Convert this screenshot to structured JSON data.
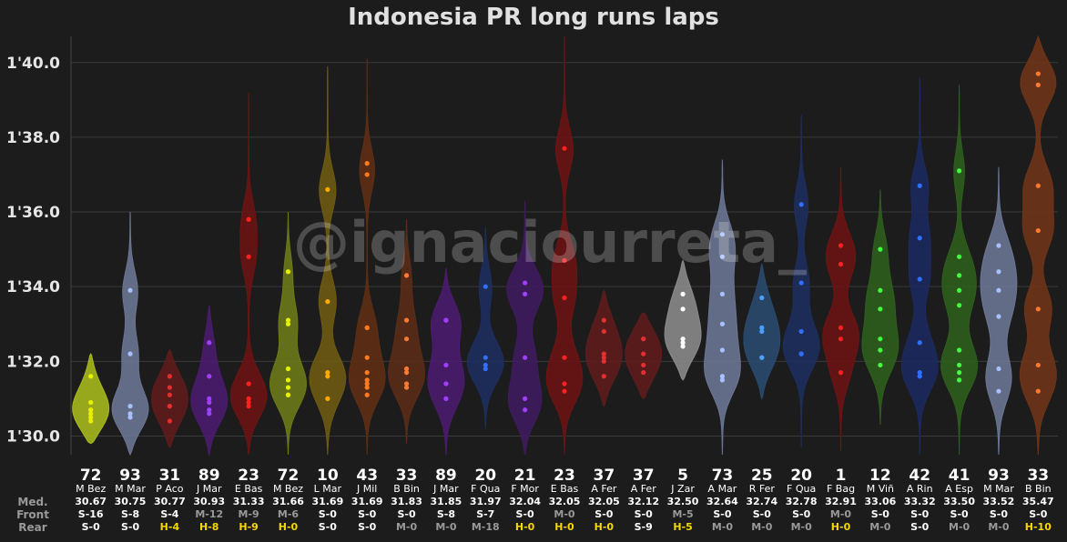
{
  "title": "Indonesia PR long runs laps",
  "watermark": "@ignaciourreta_",
  "row_labels": {
    "med": "Med.",
    "front": "Front",
    "rear": "Rear"
  },
  "chart_data": {
    "type": "violin",
    "title": "Indonesia PR long runs laps",
    "ylim": [
      89.5,
      100.7
    ],
    "yticks": [
      90,
      92,
      94,
      96,
      98,
      100
    ],
    "ytick_labels": [
      "1'30.0",
      "1'32.0",
      "1'34.0",
      "1'36.0",
      "1'38.0",
      "1'40.0"
    ],
    "grid": true,
    "riders": [
      {
        "number": "72",
        "name": "M Bez",
        "median": "30.67",
        "front": "S-16",
        "rear": "S-0",
        "front_color": "#ffffff",
        "rear_color": "#ffffff",
        "color": "#a6b81e",
        "point_color": "#e8f000",
        "range": [
          89.8,
          92.2
        ],
        "points": [
          90.4,
          90.5,
          90.6,
          90.7,
          90.7,
          90.9,
          91.6
        ]
      },
      {
        "number": "93",
        "name": "M Mar",
        "median": "30.75",
        "front": "S-8",
        "rear": "S-0",
        "front_color": "#ffffff",
        "rear_color": "#ffffff",
        "color": "#6b7592",
        "point_color": "#a8c0ff",
        "range": [
          89.4,
          96.0
        ],
        "points": [
          90.5,
          90.6,
          90.8,
          92.2,
          93.9
        ]
      },
      {
        "number": "31",
        "name": "P Aco",
        "median": "30.77",
        "front": "S-4",
        "rear": "H-4",
        "front_color": "#ffffff",
        "rear_color": "#f5d800",
        "color": "#5e1c1c",
        "point_color": "#e03030",
        "range": [
          89.7,
          92.3
        ],
        "points": [
          90.4,
          90.8,
          90.8,
          91.1,
          91.3,
          91.6
        ]
      },
      {
        "number": "89",
        "name": "J Mar",
        "median": "30.93",
        "front": "M-12",
        "rear": "H-8",
        "front_color": "#999999",
        "rear_color": "#f5d800",
        "color": "#4a1c6e",
        "point_color": "#a040ff",
        "range": [
          89.5,
          93.5
        ],
        "points": [
          90.6,
          90.7,
          90.9,
          91.0,
          91.6,
          92.5
        ]
      },
      {
        "number": "23",
        "name": "E Bas",
        "median": "31.33",
        "front": "M-9",
        "rear": "H-9",
        "front_color": "#999999",
        "rear_color": "#f5d800",
        "color": "#6a1414",
        "point_color": "#ff2020",
        "range": [
          89.5,
          99.2
        ],
        "points": [
          90.8,
          90.9,
          91.0,
          91.4,
          94.8,
          95.8
        ]
      },
      {
        "number": "72",
        "name": "M Bez",
        "median": "31.66",
        "front": "M-6",
        "rear": "H-0",
        "front_color": "#999999",
        "rear_color": "#f5d800",
        "color": "#6b7a1a",
        "point_color": "#e8f000",
        "range": [
          89.5,
          96.0
        ],
        "points": [
          91.1,
          91.1,
          91.3,
          91.5,
          91.8,
          93.0,
          93.1,
          94.4
        ]
      },
      {
        "number": "10",
        "name": "L Mar",
        "median": "31.69",
        "front": "S-0",
        "rear": "S-0",
        "front_color": "#ffffff",
        "rear_color": "#ffffff",
        "color": "#6e5a14",
        "point_color": "#ffaa00",
        "range": [
          89.5,
          99.9
        ],
        "points": [
          91.0,
          91.6,
          91.7,
          93.6,
          96.6
        ]
      },
      {
        "number": "43",
        "name": "J Mil",
        "median": "31.69",
        "front": "S-0",
        "rear": "S-0",
        "front_color": "#ffffff",
        "rear_color": "#ffffff",
        "color": "#5e2e14",
        "point_color": "#ff7a20",
        "range": [
          89.5,
          100.1
        ],
        "points": [
          91.1,
          91.3,
          91.4,
          91.5,
          91.7,
          92.1,
          92.9,
          92.9,
          97.0,
          97.3
        ]
      },
      {
        "number": "33",
        "name": "B Bin",
        "median": "31.83",
        "front": "S-0",
        "rear": "M-0",
        "front_color": "#ffffff",
        "rear_color": "#999999",
        "color": "#5a2c18",
        "point_color": "#ff7a30",
        "range": [
          89.8,
          95.8
        ],
        "points": [
          91.3,
          91.4,
          91.7,
          91.8,
          92.6,
          93.1,
          94.3
        ]
      },
      {
        "number": "89",
        "name": "J Mar",
        "median": "31.85",
        "front": "S-8",
        "rear": "M-0",
        "front_color": "#ffffff",
        "rear_color": "#999999",
        "color": "#4a1c6e",
        "point_color": "#a040ff",
        "range": [
          89.5,
          94.5
        ],
        "points": [
          91.0,
          91.4,
          91.9,
          93.1,
          93.1
        ]
      },
      {
        "number": "20",
        "name": "F Qua",
        "median": "31.97",
        "front": "S-7",
        "rear": "M-18",
        "front_color": "#ffffff",
        "rear_color": "#999999",
        "color": "#1e2e5e",
        "point_color": "#3070ff",
        "range": [
          90.2,
          95.6
        ],
        "points": [
          91.8,
          91.9,
          92.1,
          94.0
        ]
      },
      {
        "number": "21",
        "name": "F Mor",
        "median": "32.04",
        "front": "S-0",
        "rear": "H-0",
        "front_color": "#ffffff",
        "rear_color": "#f5d800",
        "color": "#3e1c5e",
        "point_color": "#a040ff",
        "range": [
          89.5,
          96.3
        ],
        "points": [
          90.7,
          91.0,
          92.1,
          93.8,
          94.1
        ]
      },
      {
        "number": "23",
        "name": "E Bas",
        "median": "32.05",
        "front": "M-0",
        "rear": "H-0",
        "front_color": "#999999",
        "rear_color": "#f5d800",
        "color": "#6a1414",
        "point_color": "#ff2020",
        "range": [
          89.5,
          100.7
        ],
        "points": [
          91.2,
          91.4,
          92.1,
          93.7,
          94.7,
          97.7
        ]
      },
      {
        "number": "37",
        "name": "A Fer",
        "median": "32.05",
        "front": "S-0",
        "rear": "H-0",
        "front_color": "#ffffff",
        "rear_color": "#f5d800",
        "color": "#5e1c1c",
        "point_color": "#e03030",
        "range": [
          90.8,
          93.9
        ],
        "points": [
          91.6,
          92.0,
          92.1,
          92.2,
          92.8,
          93.1
        ]
      },
      {
        "number": "37",
        "name": "A Fer",
        "median": "32.12",
        "front": "S-0",
        "rear": "S-9",
        "front_color": "#ffffff",
        "rear_color": "#ffffff",
        "color": "#5e1c1c",
        "point_color": "#e03030",
        "range": [
          91.0,
          93.3
        ],
        "points": [
          91.7,
          91.9,
          92.2,
          92.6,
          92.6
        ]
      },
      {
        "number": "5",
        "name": "J Zar",
        "median": "32.50",
        "front": "M-5",
        "rear": "H-5",
        "front_color": "#999999",
        "rear_color": "#f5d800",
        "color": "#8a8a8a",
        "point_color": "#ffffff",
        "range": [
          91.5,
          94.7
        ],
        "points": [
          92.4,
          92.5,
          92.6,
          93.4,
          93.8
        ]
      },
      {
        "number": "73",
        "name": "A Mar",
        "median": "32.64",
        "front": "S-0",
        "rear": "M-0",
        "front_color": "#ffffff",
        "rear_color": "#999999",
        "color": "#6b7592",
        "point_color": "#a8c0ff",
        "range": [
          89.5,
          97.4
        ],
        "points": [
          91.5,
          91.6,
          92.3,
          93.0,
          93.8,
          94.8,
          95.4
        ]
      },
      {
        "number": "25",
        "name": "R Fer",
        "median": "32.74",
        "front": "S-0",
        "rear": "M-0",
        "front_color": "#ffffff",
        "rear_color": "#999999",
        "color": "#2a4a6e",
        "point_color": "#4aa0ff",
        "range": [
          91.0,
          94.6
        ],
        "points": [
          92.1,
          92.1,
          92.8,
          92.9,
          93.7
        ]
      },
      {
        "number": "20",
        "name": "F Qua",
        "median": "32.78",
        "front": "S-0",
        "rear": "M-0",
        "front_color": "#ffffff",
        "rear_color": "#999999",
        "color": "#1e2e5e",
        "point_color": "#3070ff",
        "range": [
          89.7,
          98.6
        ],
        "points": [
          92.2,
          92.2,
          92.8,
          94.1,
          96.2
        ]
      },
      {
        "number": "1",
        "name": "F Bag",
        "median": "32.91",
        "front": "M-0",
        "rear": "H-0",
        "front_color": "#999999",
        "rear_color": "#f5d800",
        "color": "#6a1414",
        "point_color": "#ff2020",
        "range": [
          89.6,
          97.2
        ],
        "points": [
          91.7,
          92.6,
          92.9,
          94.6,
          95.1
        ]
      },
      {
        "number": "12",
        "name": "M Viñ",
        "median": "33.06",
        "front": "S-0",
        "rear": "M-0",
        "front_color": "#ffffff",
        "rear_color": "#999999",
        "color": "#2e5e1e",
        "point_color": "#40ff40",
        "range": [
          90.3,
          96.6
        ],
        "points": [
          91.9,
          92.3,
          92.6,
          93.4,
          93.9,
          95.0
        ]
      },
      {
        "number": "42",
        "name": "A Rin",
        "median": "33.32",
        "front": "S-0",
        "rear": "S-0",
        "front_color": "#ffffff",
        "rear_color": "#ffffff",
        "color": "#1c2a5e",
        "point_color": "#3070ff",
        "range": [
          89.5,
          99.6
        ],
        "points": [
          91.6,
          91.7,
          92.5,
          94.2,
          95.3,
          96.7
        ]
      },
      {
        "number": "41",
        "name": "A Esp",
        "median": "33.50",
        "front": "S-0",
        "rear": "M-0",
        "front_color": "#ffffff",
        "rear_color": "#999999",
        "color": "#2e5e1e",
        "point_color": "#40ff40",
        "range": [
          89.5,
          99.4
        ],
        "points": [
          91.5,
          91.7,
          91.9,
          92.3,
          93.5,
          93.9,
          94.3,
          94.8,
          97.1
        ]
      },
      {
        "number": "93",
        "name": "M Mar",
        "median": "33.52",
        "front": "S-0",
        "rear": "M-0",
        "front_color": "#ffffff",
        "rear_color": "#999999",
        "color": "#6b7592",
        "point_color": "#a8c0ff",
        "range": [
          89.5,
          97.2
        ],
        "points": [
          91.2,
          91.8,
          93.2,
          93.9,
          94.4,
          95.1
        ]
      },
      {
        "number": "33",
        "name": "B Bin",
        "median": "35.47",
        "front": "S-0",
        "rear": "H-10",
        "front_color": "#ffffff",
        "rear_color": "#f5d800",
        "color": "#6e3418",
        "point_color": "#ff7a30",
        "range": [
          89.5,
          100.7
        ],
        "points": [
          91.2,
          91.9,
          93.4,
          95.5,
          96.7,
          99.4,
          99.7
        ]
      }
    ]
  }
}
